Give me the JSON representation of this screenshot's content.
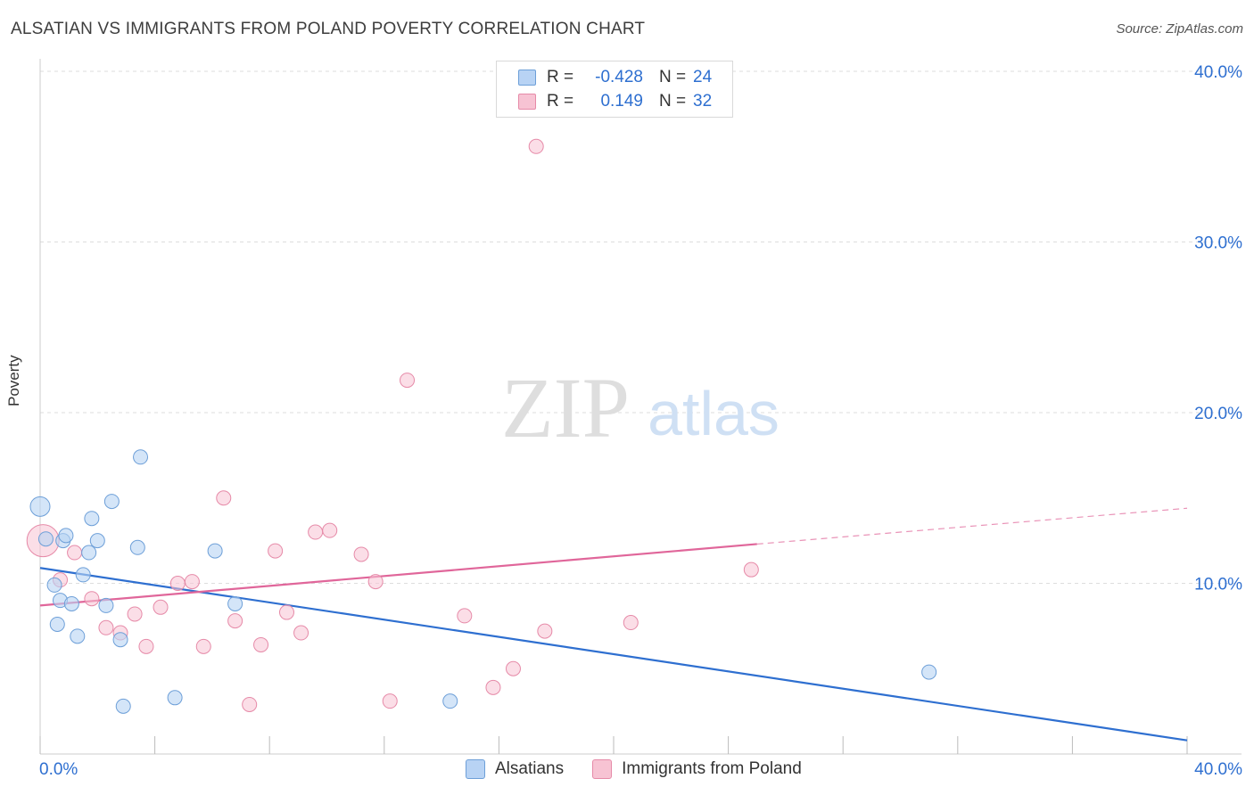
{
  "title": "ALSATIAN VS IMMIGRANTS FROM POLAND POVERTY CORRELATION CHART",
  "source": "Source: ZipAtlas.com",
  "watermark": {
    "zip": "ZIP",
    "atlas": "atlas"
  },
  "legend": {
    "r_label": "R =",
    "n_label": "N =",
    "series1": {
      "r": "-0.428",
      "n": "24"
    },
    "series2": {
      "r": "0.149",
      "n": "32"
    }
  },
  "colors": {
    "blue_fill": "#b8d3f4",
    "blue_stroke": "#6d9fd8",
    "blue_line": "#2e6fd0",
    "pink_fill": "#f7c3d3",
    "pink_stroke": "#e68aa8",
    "pink_line": "#e0669a",
    "axis_text": "#2e6fd0",
    "grid": "#dddddd"
  },
  "chart_data": {
    "type": "scatter",
    "title": "ALSATIAN VS IMMIGRANTS FROM POLAND POVERTY CORRELATION CHART",
    "xlabel": "",
    "ylabel": "Poverty",
    "xlim": [
      0,
      40
    ],
    "ylim": [
      0,
      40
    ],
    "x_tick_labels": [
      "0.0%",
      "40.0%"
    ],
    "y_ticks": [
      10,
      20,
      30,
      40
    ],
    "y_tick_labels": [
      "10.0%",
      "20.0%",
      "30.0%",
      "40.0%"
    ],
    "series": [
      {
        "name": "Alsatians",
        "points": [
          [
            0.0,
            14.5
          ],
          [
            0.2,
            12.6
          ],
          [
            0.5,
            9.9
          ],
          [
            0.6,
            7.6
          ],
          [
            0.7,
            9.0
          ],
          [
            0.8,
            12.5
          ],
          [
            0.9,
            12.8
          ],
          [
            1.1,
            8.8
          ],
          [
            1.3,
            6.9
          ],
          [
            1.5,
            10.5
          ],
          [
            1.7,
            11.8
          ],
          [
            1.8,
            13.8
          ],
          [
            2.0,
            12.5
          ],
          [
            2.3,
            8.7
          ],
          [
            2.5,
            14.8
          ],
          [
            2.8,
            6.7
          ],
          [
            2.9,
            2.8
          ],
          [
            3.4,
            12.1
          ],
          [
            3.5,
            17.4
          ],
          [
            4.7,
            3.3
          ],
          [
            6.1,
            11.9
          ],
          [
            6.8,
            8.8
          ],
          [
            14.3,
            3.1
          ],
          [
            31.0,
            4.8
          ]
        ],
        "trend": {
          "x": [
            0,
            40
          ],
          "y": [
            10.9,
            0.8
          ],
          "style": "solid"
        }
      },
      {
        "name": "Immigrants from Poland",
        "points": [
          [
            0.1,
            12.5
          ],
          [
            0.7,
            10.2
          ],
          [
            1.2,
            11.8
          ],
          [
            1.8,
            9.1
          ],
          [
            2.3,
            7.4
          ],
          [
            2.8,
            7.1
          ],
          [
            3.3,
            8.2
          ],
          [
            3.7,
            6.3
          ],
          [
            4.2,
            8.6
          ],
          [
            4.8,
            10.0
          ],
          [
            5.3,
            10.1
          ],
          [
            5.7,
            6.3
          ],
          [
            6.4,
            15.0
          ],
          [
            6.8,
            7.8
          ],
          [
            7.3,
            2.9
          ],
          [
            7.7,
            6.4
          ],
          [
            8.2,
            11.9
          ],
          [
            8.6,
            8.3
          ],
          [
            9.1,
            7.1
          ],
          [
            9.6,
            13.0
          ],
          [
            10.1,
            13.1
          ],
          [
            11.2,
            11.7
          ],
          [
            11.7,
            10.1
          ],
          [
            12.2,
            3.1
          ],
          [
            12.8,
            21.9
          ],
          [
            14.8,
            8.1
          ],
          [
            15.8,
            3.9
          ],
          [
            16.5,
            5.0
          ],
          [
            17.3,
            35.6
          ],
          [
            17.6,
            7.2
          ],
          [
            20.6,
            7.7
          ],
          [
            24.8,
            10.8
          ]
        ],
        "trend": {
          "x": [
            0,
            25,
            40
          ],
          "y": [
            8.7,
            12.3,
            14.4
          ],
          "style": "solid-then-dashed"
        }
      }
    ],
    "legend_position": "top-center"
  },
  "bottom_legend": {
    "series1": "Alsatians",
    "series2": "Immigrants from Poland"
  }
}
